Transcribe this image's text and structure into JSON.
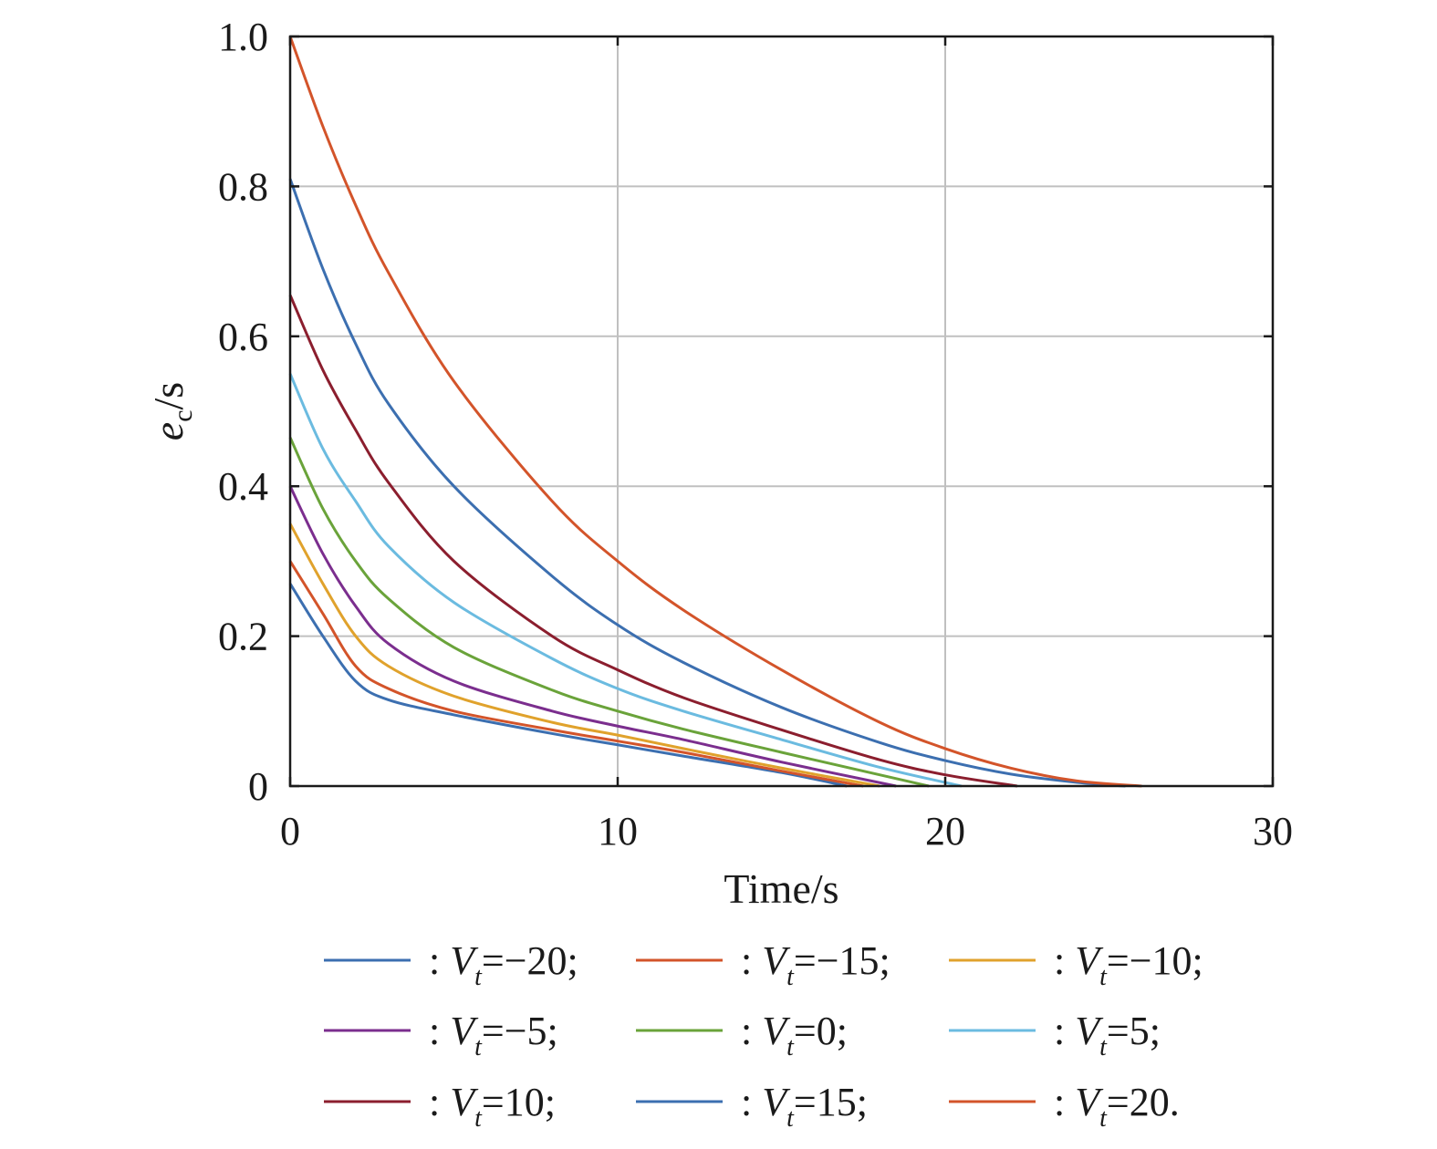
{
  "chart_data": {
    "type": "line",
    "xlabel": "Time/s",
    "ylabel": {
      "main": "e",
      "sub": "c",
      "unit": "/s"
    },
    "xlim": [
      0,
      30
    ],
    "ylim": [
      0,
      1.0
    ],
    "xticks": [
      0,
      10,
      20,
      30
    ],
    "xtick_labels": [
      "0",
      "10",
      "20",
      "30"
    ],
    "yticks": [
      0,
      0.2,
      0.4,
      0.6,
      0.8,
      1.0
    ],
    "ytick_labels": [
      "0",
      "0.2",
      "0.4",
      "0.6",
      "0.8",
      "1.0"
    ],
    "grid": true,
    "legend_placement": "bottom",
    "series": [
      {
        "name": "V_t=−20",
        "legend_sep": ": ",
        "legend_var": "V",
        "legend_sub": "t",
        "legend_rest": "=−20;",
        "color": "#3c6fb0",
        "x": [
          0,
          1,
          2,
          3,
          5,
          8,
          10,
          12,
          15,
          17
        ],
        "y": [
          0.27,
          0.2,
          0.14,
          0.115,
          0.095,
          0.07,
          0.055,
          0.04,
          0.018,
          0.0
        ]
      },
      {
        "name": "V_t=−15",
        "legend_sep": ": ",
        "legend_var": "V",
        "legend_sub": "t",
        "legend_rest": "=−15;",
        "color": "#d3542a",
        "x": [
          0,
          1,
          2,
          3,
          5,
          8,
          10,
          12,
          15,
          17.5
        ],
        "y": [
          0.3,
          0.23,
          0.16,
          0.13,
          0.1,
          0.075,
          0.06,
          0.045,
          0.02,
          0.0
        ]
      },
      {
        "name": "V_t=−10",
        "legend_sep": ": ",
        "legend_var": "V",
        "legend_sub": "t",
        "legend_rest": "=−10;",
        "color": "#e0a22c",
        "x": [
          0,
          1,
          2,
          3,
          5,
          8,
          10,
          12,
          15,
          18
        ],
        "y": [
          0.35,
          0.27,
          0.2,
          0.16,
          0.12,
          0.085,
          0.068,
          0.05,
          0.024,
          0.0
        ]
      },
      {
        "name": "V_t=−5",
        "legend_sep": ": ",
        "legend_var": "V",
        "legend_sub": "t",
        "legend_rest": "=−5;",
        "color": "#7b2e8e",
        "x": [
          0,
          1,
          2,
          3,
          5,
          8,
          10,
          12,
          15,
          18.5
        ],
        "y": [
          0.4,
          0.31,
          0.24,
          0.19,
          0.14,
          0.1,
          0.08,
          0.062,
          0.032,
          0.0
        ]
      },
      {
        "name": "V_t=0",
        "legend_sep": ": ",
        "legend_var": "V",
        "legend_sub": "t",
        "legend_rest": "=0;",
        "color": "#6aa33a",
        "x": [
          0,
          1,
          2,
          3,
          5,
          8,
          10,
          12,
          15,
          18,
          19.5
        ],
        "y": [
          0.465,
          0.37,
          0.3,
          0.25,
          0.185,
          0.128,
          0.1,
          0.076,
          0.045,
          0.015,
          0.0
        ]
      },
      {
        "name": "V_t=5",
        "legend_sep": ": ",
        "legend_var": "V",
        "legend_sub": "t",
        "legend_rest": "=5;",
        "color": "#6bbbe0",
        "x": [
          0,
          1,
          2,
          3,
          5,
          8,
          10,
          12,
          15,
          18,
          20.5
        ],
        "y": [
          0.55,
          0.45,
          0.38,
          0.32,
          0.245,
          0.17,
          0.13,
          0.1,
          0.062,
          0.025,
          0.0
        ]
      },
      {
        "name": "V_t=10",
        "legend_sep": ": ",
        "legend_var": "V",
        "legend_sub": "t",
        "legend_rest": "=10;",
        "color": "#8b1e2e",
        "x": [
          0,
          1,
          2,
          3,
          5,
          8,
          10,
          12,
          15,
          18,
          20,
          22.2
        ],
        "y": [
          0.655,
          0.555,
          0.475,
          0.405,
          0.3,
          0.2,
          0.155,
          0.118,
          0.075,
          0.035,
          0.015,
          0.0
        ]
      },
      {
        "name": "V_t=15",
        "legend_sep": ": ",
        "legend_var": "V",
        "legend_sub": "t",
        "legend_rest": "=15;",
        "color": "#3c6fb0",
        "x": [
          0,
          1,
          2,
          3,
          5,
          8,
          10,
          12,
          15,
          18,
          20,
          22,
          24,
          25.5
        ],
        "y": [
          0.81,
          0.69,
          0.59,
          0.51,
          0.4,
          0.28,
          0.215,
          0.165,
          0.105,
          0.058,
          0.034,
          0.016,
          0.005,
          0.0
        ]
      },
      {
        "name": "V_t=20",
        "legend_sep": ": ",
        "legend_var": "V",
        "legend_sub": "t",
        "legend_rest": "=20.",
        "color": "#d3542a",
        "x": [
          0,
          1,
          2,
          3,
          5,
          8,
          10,
          12,
          15,
          18,
          20,
          22,
          24,
          26
        ],
        "y": [
          1.0,
          0.88,
          0.775,
          0.685,
          0.54,
          0.38,
          0.3,
          0.235,
          0.155,
          0.085,
          0.05,
          0.024,
          0.007,
          0.0
        ]
      }
    ]
  }
}
